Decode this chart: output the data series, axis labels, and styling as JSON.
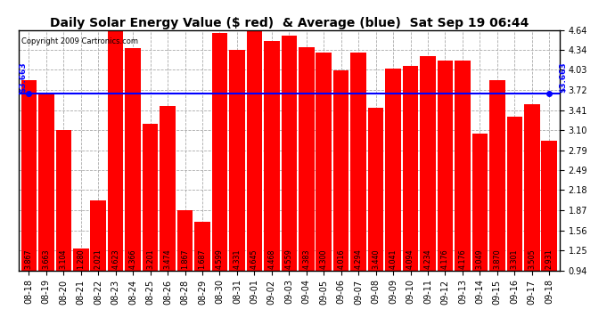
{
  "title": "Daily Solar Energy Value ($ red)  & Average (blue)  Sat Sep 19 06:44",
  "copyright": "Copyright 2009 Cartronics.com",
  "categories": [
    "08-18",
    "08-19",
    "08-20",
    "08-21",
    "08-22",
    "08-23",
    "08-24",
    "08-25",
    "08-26",
    "08-28",
    "08-29",
    "08-30",
    "08-31",
    "09-01",
    "09-02",
    "09-03",
    "09-04",
    "09-05",
    "09-06",
    "09-07",
    "09-08",
    "09-09",
    "09-10",
    "09-11",
    "09-12",
    "09-13",
    "09-14",
    "09-15",
    "09-16",
    "09-17",
    "09-18"
  ],
  "values": [
    3.867,
    3.663,
    3.104,
    1.28,
    2.021,
    4.623,
    4.366,
    3.201,
    3.474,
    1.867,
    1.687,
    4.599,
    4.331,
    4.645,
    4.468,
    4.559,
    4.383,
    4.3,
    4.016,
    4.294,
    3.44,
    4.041,
    4.094,
    4.234,
    4.176,
    4.176,
    3.049,
    3.87,
    3.301,
    3.505,
    2.931
  ],
  "average": 3.663,
  "bar_color": "#ff0000",
  "avg_line_color": "#0000ff",
  "background_color": "#ffffff",
  "plot_bg_color": "#ffffff",
  "grid_color": "#aaaaaa",
  "ylim": [
    0.94,
    4.64
  ],
  "yticks": [
    0.94,
    1.25,
    1.56,
    1.87,
    2.18,
    2.49,
    2.79,
    3.1,
    3.41,
    3.72,
    4.03,
    4.34,
    4.64
  ],
  "avg_label": "$3.663",
  "title_fontsize": 10,
  "tick_fontsize": 7,
  "bar_label_fontsize": 5.8,
  "copyright_fontsize": 6
}
